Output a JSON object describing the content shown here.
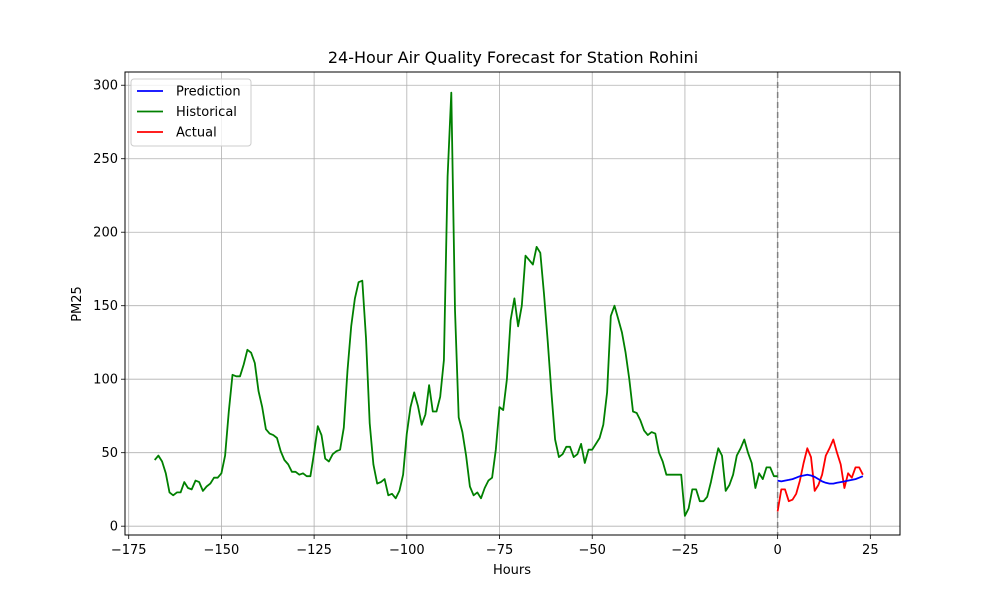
{
  "chart_data": {
    "type": "line",
    "title": "24-Hour Air Quality Forecast for Station Rohini",
    "xlabel": "Hours",
    "ylabel": "PM25",
    "xlim": [
      -176,
      33
    ],
    "ylim": [
      -6,
      309
    ],
    "xticks": [
      -175,
      -150,
      -125,
      -100,
      -75,
      -50,
      -25,
      0,
      25
    ],
    "xtick_labels": [
      "−175",
      "−150",
      "−125",
      "−100",
      "−75",
      "−50",
      "−25",
      "0",
      "25"
    ],
    "yticks": [
      0,
      50,
      100,
      150,
      200,
      250,
      300
    ],
    "ytick_labels": [
      "0",
      "50",
      "100",
      "150",
      "200",
      "250",
      "300"
    ],
    "grid": true,
    "legend_position": "top-left",
    "vline": {
      "x": 0,
      "style": "dashed",
      "color": "#808080"
    },
    "series": [
      {
        "name": "Prediction",
        "color": "#0000ff",
        "x": [
          0,
          1,
          2,
          3,
          4,
          5,
          6,
          7,
          8,
          9,
          10,
          11,
          12,
          13,
          14,
          15,
          16,
          17,
          18,
          19,
          20,
          21,
          22,
          23
        ],
        "y": [
          31,
          30.5,
          31,
          31.5,
          32,
          33,
          34,
          34.5,
          35,
          34.5,
          33.5,
          32,
          30.5,
          29.5,
          29,
          29,
          29.5,
          30,
          30.5,
          31,
          31.5,
          32,
          33,
          34
        ]
      },
      {
        "name": "Historical",
        "color": "#008000",
        "x": [
          -168,
          -167,
          -166,
          -165,
          -164,
          -163,
          -162,
          -161,
          -160,
          -159,
          -158,
          -157,
          -156,
          -155,
          -154,
          -153,
          -152,
          -151,
          -150,
          -149,
          -148,
          -147,
          -146,
          -145,
          -144,
          -143,
          -142,
          -141,
          -140,
          -139,
          -138,
          -137,
          -136,
          -135,
          -134,
          -133,
          -132,
          -131,
          -130,
          -129,
          -128,
          -127,
          -126,
          -125,
          -124,
          -123,
          -122,
          -121,
          -120,
          -119,
          -118,
          -117,
          -116,
          -115,
          -114,
          -113,
          -112,
          -111,
          -110,
          -109,
          -108,
          -107,
          -106,
          -105,
          -104,
          -103,
          -102,
          -101,
          -100,
          -99,
          -98,
          -97,
          -96,
          -95,
          -94,
          -93,
          -92,
          -91,
          -90,
          -89,
          -88,
          -87,
          -86,
          -85,
          -84,
          -83,
          -82,
          -81,
          -80,
          -79,
          -78,
          -77,
          -76,
          -75,
          -74,
          -73,
          -72,
          -71,
          -70,
          -69,
          -68,
          -67,
          -66,
          -65,
          -64,
          -63,
          -62,
          -61,
          -60,
          -59,
          -58,
          -57,
          -56,
          -55,
          -54,
          -53,
          -52,
          -51,
          -50,
          -49,
          -48,
          -47,
          -46,
          -45,
          -44,
          -43,
          -42,
          -41,
          -40,
          -39,
          -38,
          -37,
          -36,
          -35,
          -34,
          -33,
          -32,
          -31,
          -30,
          -29,
          -28,
          -27,
          -26,
          -25,
          -24,
          -23,
          -22,
          -21,
          -20,
          -19,
          -18,
          -17,
          -16,
          -15,
          -14,
          -13,
          -12,
          -11,
          -10,
          -9,
          -8,
          -7,
          -6,
          -5,
          -4,
          -3,
          -2,
          -1,
          0
        ],
        "y": [
          45,
          48,
          44,
          36,
          23,
          21,
          23,
          23,
          30,
          26,
          25,
          31,
          30,
          24,
          27,
          29,
          33,
          33,
          36,
          48,
          78,
          103,
          102,
          102,
          110,
          120,
          118,
          111,
          92,
          81,
          66,
          63,
          62,
          60,
          51,
          45,
          42,
          37,
          37,
          35,
          36,
          34,
          34,
          50,
          68,
          62,
          46,
          44,
          49,
          51,
          52,
          67,
          106,
          136,
          155,
          166,
          167,
          128,
          70,
          42,
          29,
          30,
          32,
          21,
          22,
          19,
          24,
          35,
          63,
          81,
          91,
          82,
          69,
          76,
          96,
          78,
          78,
          88,
          113,
          238,
          295,
          147,
          74,
          64,
          48,
          27,
          21,
          23,
          19,
          26,
          31,
          33,
          52,
          81,
          79,
          100,
          140,
          155,
          136,
          150,
          184,
          181,
          178,
          190,
          186,
          158,
          126,
          91,
          59,
          47,
          49,
          54,
          54,
          47,
          49,
          56,
          43,
          52,
          52,
          56,
          60,
          69,
          91,
          143,
          150,
          141,
          132,
          118,
          100,
          78,
          77,
          72,
          65,
          62,
          64,
          63,
          50,
          44,
          35,
          35,
          35,
          35,
          35,
          7,
          12,
          25,
          25,
          17,
          17,
          20,
          30,
          42,
          53,
          48,
          24,
          28,
          35,
          48,
          53,
          59,
          50,
          43,
          26,
          36,
          32,
          40,
          40,
          34,
          34
        ]
      },
      {
        "name": "Actual",
        "color": "#ff0000",
        "x": [
          0,
          1,
          2,
          3,
          4,
          5,
          6,
          7,
          8,
          9,
          10,
          11,
          12,
          13,
          14,
          15,
          16,
          17,
          18,
          19,
          20,
          21,
          22,
          23
        ],
        "y": [
          10,
          25,
          25,
          17,
          18,
          22,
          31,
          43,
          53,
          47,
          24,
          28,
          35,
          48,
          53,
          59,
          50,
          42,
          26,
          36,
          33,
          40,
          40,
          35
        ]
      }
    ]
  }
}
